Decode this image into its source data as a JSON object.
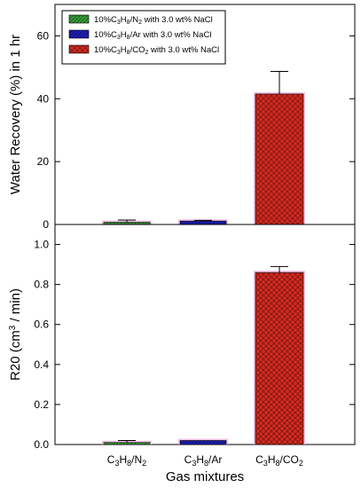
{
  "chart_data": [
    {
      "type": "bar",
      "panel": "top",
      "ylabel": "Water Recovery (%) in 1 hr",
      "xlabel": "",
      "ylim": [
        0,
        70
      ],
      "yticks": [
        "0",
        "20",
        "40",
        "60"
      ],
      "ytick_values": [
        0,
        20,
        40,
        60
      ],
      "categories": [
        "C3H8/N2",
        "C3H8/Ar",
        "C3H8/CO2"
      ],
      "values": [
        0.7,
        1.1,
        41.5
      ],
      "error_plus": [
        0.7,
        0.2,
        7.2
      ],
      "bar_colors": [
        "#3a9a3a",
        "#2222bb",
        "#d42a20"
      ],
      "legend_placement": "top-left",
      "legend": [
        {
          "pre": "10%C",
          "s1": "3",
          "mid": "H",
          "s2": "8",
          "post": "/N",
          "s3": "2",
          "tail": " with 3.0 wt% NaCl",
          "color": "#3a9a3a"
        },
        {
          "pre": "10%C",
          "s1": "3",
          "mid": "H",
          "s2": "8",
          "post": "/Ar",
          "s3": "",
          "tail": " with 3.0 wt% NaCl",
          "color": "#2222bb"
        },
        {
          "pre": "10%C",
          "s1": "3",
          "mid": "H",
          "s2": "8",
          "post": "/CO",
          "s3": "2",
          "tail": " with 3.0 wt% NaCl",
          "color": "#d42a20"
        }
      ]
    },
    {
      "type": "bar",
      "panel": "bottom",
      "ylabel_main": "R20 (cm",
      "ylabel_sup": "3",
      "ylabel_tail": " / min)",
      "xlabel": "Gas mixtures",
      "ylim": [
        0,
        1.1
      ],
      "yticks": [
        "0.0",
        "0.2",
        "0.4",
        "0.6",
        "0.8",
        "1.0"
      ],
      "ytick_values": [
        0,
        0.2,
        0.4,
        0.6,
        0.8,
        1.0
      ],
      "categories": [
        "C3H8/N2",
        "C3H8/Ar",
        "C3H8/CO2"
      ],
      "category_parts": [
        {
          "a": "C",
          "b": "3",
          "c": "H",
          "d": "8",
          "e": "/N",
          "f": "2"
        },
        {
          "a": "C",
          "b": "3",
          "c": "H",
          "d": "8",
          "e": "/Ar",
          "f": ""
        },
        {
          "a": "C",
          "b": "3",
          "c": "H",
          "d": "8",
          "e": "/CO",
          "f": "2"
        }
      ],
      "values": [
        0.01,
        0.02,
        0.86
      ],
      "error_plus": [
        0.01,
        0.0,
        0.03
      ],
      "bar_colors": [
        "#3a9a3a",
        "#2222bb",
        "#d42a20"
      ]
    }
  ]
}
